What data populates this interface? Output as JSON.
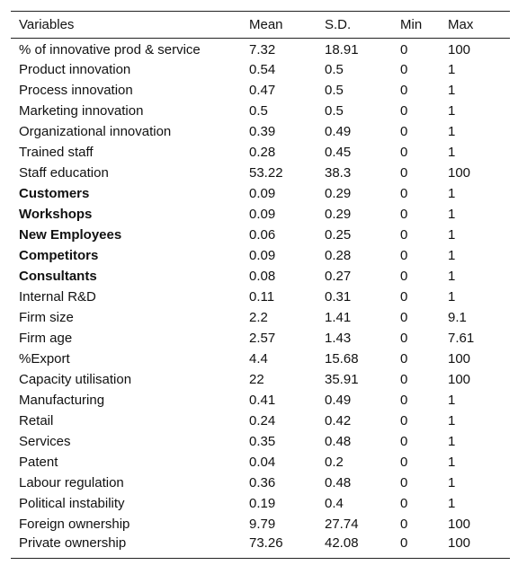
{
  "table": {
    "headers": [
      "Variables",
      "Mean",
      "S.D.",
      "Min",
      "Max"
    ],
    "rows": [
      {
        "variable": "% of innovative prod & service",
        "mean": "7.32",
        "sd": "18.91",
        "min": "0",
        "max": "100",
        "bold": false
      },
      {
        "variable": "Product innovation",
        "mean": "0.54",
        "sd": "0.5",
        "min": "0",
        "max": "1",
        "bold": false
      },
      {
        "variable": "Process innovation",
        "mean": "0.47",
        "sd": "0.5",
        "min": "0",
        "max": "1",
        "bold": false
      },
      {
        "variable": "Marketing innovation",
        "mean": "0.5",
        "sd": "0.5",
        "min": "0",
        "max": "1",
        "bold": false
      },
      {
        "variable": "Organizational innovation",
        "mean": "0.39",
        "sd": "0.49",
        "min": "0",
        "max": "1",
        "bold": false
      },
      {
        "variable": "Trained staff",
        "mean": "0.28",
        "sd": "0.45",
        "min": "0",
        "max": "1",
        "bold": false
      },
      {
        "variable": "Staff education",
        "mean": "53.22",
        "sd": "38.3",
        "min": "0",
        "max": "100",
        "bold": false
      },
      {
        "variable": "Customers",
        "mean": "0.09",
        "sd": "0.29",
        "min": "0",
        "max": "1",
        "bold": true
      },
      {
        "variable": "Workshops",
        "mean": "0.09",
        "sd": "0.29",
        "min": "0",
        "max": "1",
        "bold": true
      },
      {
        "variable": "New Employees",
        "mean": "0.06",
        "sd": "0.25",
        "min": "0",
        "max": "1",
        "bold": true
      },
      {
        "variable": "Competitors",
        "mean": "0.09",
        "sd": "0.28",
        "min": "0",
        "max": "1",
        "bold": true
      },
      {
        "variable": "Consultants",
        "mean": "0.08",
        "sd": "0.27",
        "min": "0",
        "max": "1",
        "bold": true
      },
      {
        "variable": "Internal R&D",
        "mean": "0.11",
        "sd": "0.31",
        "min": "0",
        "max": "1",
        "bold": false
      },
      {
        "variable": "Firm size",
        "mean": "2.2",
        "sd": "1.41",
        "min": "0",
        "max": "9.1",
        "bold": false
      },
      {
        "variable": "Firm age",
        "mean": "2.57",
        "sd": "1.43",
        "min": "0",
        "max": "7.61",
        "bold": false
      },
      {
        "variable": "%Export",
        "mean": "4.4",
        "sd": "15.68",
        "min": "0",
        "max": "100",
        "bold": false
      },
      {
        "variable": "Capacity utilisation",
        "mean": "22",
        "sd": "35.91",
        "min": "0",
        "max": "100",
        "bold": false
      },
      {
        "variable": "Manufacturing",
        "mean": "0.41",
        "sd": "0.49",
        "min": "0",
        "max": "1",
        "bold": false
      },
      {
        "variable": "Retail",
        "mean": "0.24",
        "sd": "0.42",
        "min": "0",
        "max": "1",
        "bold": false
      },
      {
        "variable": "Services",
        "mean": "0.35",
        "sd": "0.48",
        "min": "0",
        "max": "1",
        "bold": false
      },
      {
        "variable": "Patent",
        "mean": "0.04",
        "sd": "0.2",
        "min": "0",
        "max": "1",
        "bold": false
      },
      {
        "variable": "Labour regulation",
        "mean": "0.36",
        "sd": "0.48",
        "min": "0",
        "max": "1",
        "bold": false
      },
      {
        "variable": "Political instability",
        "mean": "0.19",
        "sd": "0.4",
        "min": "0",
        "max": "1",
        "bold": false
      },
      {
        "variable": "Foreign ownership",
        "mean": "9.79",
        "sd": "27.74",
        "min": "0",
        "max": "100",
        "bold": false
      },
      {
        "variable": "Private ownership",
        "mean": "73.26",
        "sd": "42.08",
        "min": "0",
        "max": "100",
        "bold": false
      }
    ]
  }
}
